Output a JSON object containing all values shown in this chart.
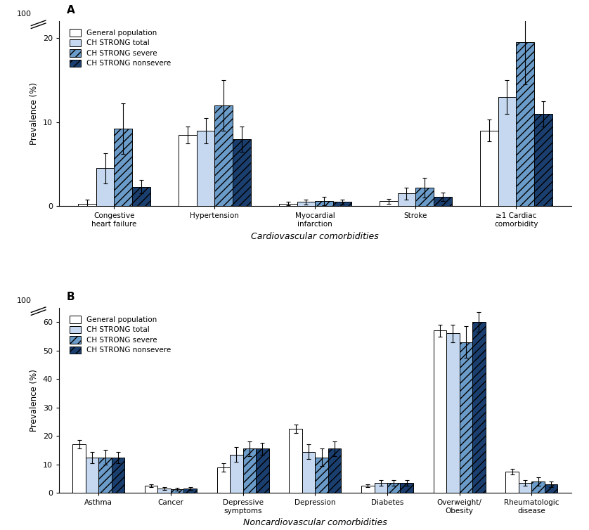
{
  "panel_A": {
    "title": "A",
    "xlabel": "Cardiovascular comorbidities",
    "ylabel": "Prevalence (%)",
    "ylim": [
      0,
      22
    ],
    "yticks": [
      0,
      10,
      20
    ],
    "categories": [
      "Congestive\nheart failure",
      "Hypertension",
      "Myocardial\ninfarction",
      "Stroke",
      "≥1 Cardiac\ncomorbidity"
    ],
    "series": {
      "General population": [
        0.3,
        8.5,
        0.3,
        0.6,
        9.0
      ],
      "CH STRONG total": [
        4.5,
        9.0,
        0.5,
        1.5,
        13.0
      ],
      "CH STRONG severe": [
        9.2,
        12.0,
        0.6,
        2.2,
        19.5
      ],
      "CH STRONG nonsevere": [
        2.3,
        8.0,
        0.5,
        1.1,
        11.0
      ]
    },
    "errors": {
      "General population": [
        0.5,
        1.0,
        0.2,
        0.3,
        1.3
      ],
      "CH STRONG total": [
        1.8,
        1.5,
        0.3,
        0.7,
        2.0
      ],
      "CH STRONG severe": [
        3.0,
        3.0,
        0.5,
        1.2,
        5.0
      ],
      "CH STRONG nonsevere": [
        0.8,
        1.5,
        0.3,
        0.5,
        1.5
      ]
    }
  },
  "panel_B": {
    "title": "B",
    "xlabel": "Noncardiovascular comorbidities",
    "ylabel": "Prevalence (%)",
    "ylim": [
      0,
      65
    ],
    "yticks": [
      0,
      10,
      20,
      30,
      40,
      50,
      60
    ],
    "categories": [
      "Asthma",
      "Cancer",
      "Depressive\nsymptoms",
      "Depression",
      "Diabetes",
      "Overweight/\nObesity",
      "Rheumatologic\ndisease"
    ],
    "series": {
      "General population": [
        17.0,
        2.5,
        9.0,
        22.5,
        2.5,
        57.0,
        7.5
      ],
      "CH STRONG total": [
        12.5,
        1.5,
        13.5,
        14.5,
        3.5,
        56.0,
        3.5
      ],
      "CH STRONG severe": [
        12.5,
        1.2,
        15.5,
        12.5,
        3.5,
        53.0,
        4.0
      ],
      "CH STRONG nonsevere": [
        12.5,
        1.5,
        15.5,
        15.5,
        3.5,
        60.0,
        3.0
      ]
    },
    "errors": {
      "General population": [
        1.5,
        0.5,
        1.5,
        1.5,
        0.5,
        2.0,
        1.0
      ],
      "CH STRONG total": [
        2.0,
        0.5,
        2.5,
        2.5,
        1.0,
        3.0,
        1.0
      ],
      "CH STRONG severe": [
        2.5,
        0.5,
        2.5,
        3.0,
        1.0,
        5.5,
        1.5
      ],
      "CH STRONG nonsevere": [
        2.0,
        0.5,
        2.0,
        2.5,
        1.0,
        3.5,
        1.0
      ]
    }
  },
  "colors": {
    "General population": "#FFFFFF",
    "CH STRONG total": "#C5D8F0",
    "CH STRONG severe": "#6B9BC8",
    "CH STRONG nonsevere": "#1A3F6F"
  },
  "hatches": {
    "General population": "",
    "CH STRONG total": "",
    "CH STRONG severe": "///",
    "CH STRONG nonsevere": "///"
  },
  "edge_color": "#000000",
  "legend_labels": [
    "General population",
    "CH STRONG total",
    "CH STRONG severe",
    "CH STRONG nonsevere"
  ],
  "bar_width": 0.18
}
